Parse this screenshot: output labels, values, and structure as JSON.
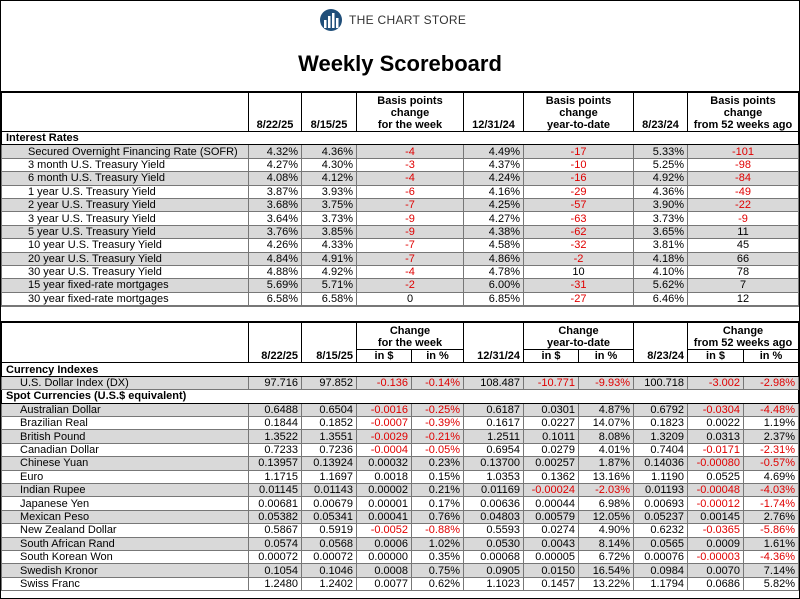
{
  "header": {
    "brand": "THE CHART STORE",
    "title": "Weekly Scoreboard"
  },
  "rates": {
    "headers": [
      "8/22/25",
      "8/15/25",
      [
        "Basis points",
        "change",
        "for the week"
      ],
      "12/31/24",
      [
        "Basis points",
        "change",
        "year-to-date"
      ],
      "8/23/24",
      [
        "Basis points",
        "change",
        "from 52 weeks ago"
      ]
    ],
    "section": "Interest Rates",
    "rows": [
      [
        "Secured Overnight Financing Rate (SOFR)",
        "4.32%",
        "4.36%",
        "-4",
        "4.49%",
        "-17",
        "5.33%",
        "-101"
      ],
      [
        "3 month U.S. Treasury Yield",
        "4.27%",
        "4.30%",
        "-3",
        "4.37%",
        "-10",
        "5.25%",
        "-98"
      ],
      [
        "6 month U.S. Treasury Yield",
        "4.08%",
        "4.12%",
        "-4",
        "4.24%",
        "-16",
        "4.92%",
        "-84"
      ],
      [
        "1 year U.S. Treasury Yield",
        "3.87%",
        "3.93%",
        "-6",
        "4.16%",
        "-29",
        "4.36%",
        "-49"
      ],
      [
        "2 year U.S. Treasury Yield",
        "3.68%",
        "3.75%",
        "-7",
        "4.25%",
        "-57",
        "3.90%",
        "-22"
      ],
      [
        "3 year U.S. Treasury Yield",
        "3.64%",
        "3.73%",
        "-9",
        "4.27%",
        "-63",
        "3.73%",
        "-9"
      ],
      [
        "5 year U.S. Treasury Yield",
        "3.76%",
        "3.85%",
        "-9",
        "4.38%",
        "-62",
        "3.65%",
        "11"
      ],
      [
        "10 year U.S. Treasury Yield",
        "4.26%",
        "4.33%",
        "-7",
        "4.58%",
        "-32",
        "3.81%",
        "45"
      ],
      [
        "20 year U.S. Treasury Yield",
        "4.84%",
        "4.91%",
        "-7",
        "4.86%",
        "-2",
        "4.18%",
        "66"
      ],
      [
        "30 year U.S. Treasury Yield",
        "4.88%",
        "4.92%",
        "-4",
        "4.78%",
        "10",
        "4.10%",
        "78"
      ],
      [
        "15 year fixed-rate mortgages",
        "5.69%",
        "5.71%",
        "-2",
        "6.00%",
        "-31",
        "5.62%",
        "7"
      ],
      [
        "30 year fixed-rate mortgages",
        "6.58%",
        "6.58%",
        "0",
        "6.85%",
        "-27",
        "6.46%",
        "12"
      ]
    ]
  },
  "currencies": {
    "headers": [
      "8/22/25",
      "8/15/25",
      {
        "title": [
          "Change",
          "for the week"
        ],
        "sub": [
          "in $",
          "in %"
        ]
      },
      "12/31/24",
      {
        "title": [
          "Change",
          "year-to-date"
        ],
        "sub": [
          "in $",
          "in %"
        ]
      },
      "8/23/24",
      {
        "title": [
          "Change",
          "from 52 weeks ago"
        ],
        "sub": [
          "in $",
          "in %"
        ]
      }
    ],
    "sections": [
      {
        "title": "Currency Indexes",
        "rows": [
          [
            "U.S. Dollar Index (DX)",
            "97.716",
            "97.852",
            "-0.136",
            "-0.14%",
            "108.487",
            "-10.771",
            "-9.93%",
            "100.718",
            "-3.002",
            "-2.98%"
          ]
        ]
      },
      {
        "title": "Spot Currencies (U.S.$ equivalent)",
        "rows": [
          [
            "Australian Dollar",
            "0.6488",
            "0.6504",
            "-0.0016",
            "-0.25%",
            "0.6187",
            "0.0301",
            "4.87%",
            "0.6792",
            "-0.0304",
            "-4.48%"
          ],
          [
            "Brazilian Real",
            "0.1844",
            "0.1852",
            "-0.0007",
            "-0.39%",
            "0.1617",
            "0.0227",
            "14.07%",
            "0.1823",
            "0.0022",
            "1.19%"
          ],
          [
            "British Pound",
            "1.3522",
            "1.3551",
            "-0.0029",
            "-0.21%",
            "1.2511",
            "0.1011",
            "8.08%",
            "1.3209",
            "0.0313",
            "2.37%"
          ],
          [
            "Canadian Dollar",
            "0.7233",
            "0.7236",
            "-0.0004",
            "-0.05%",
            "0.6954",
            "0.0279",
            "4.01%",
            "0.7404",
            "-0.0171",
            "-2.31%"
          ],
          [
            "Chinese Yuan",
            "0.13957",
            "0.13924",
            "0.00032",
            "0.23%",
            "0.13700",
            "0.00257",
            "1.87%",
            "0.14036",
            "-0.00080",
            "-0.57%"
          ],
          [
            "Euro",
            "1.1715",
            "1.1697",
            "0.0018",
            "0.15%",
            "1.0353",
            "0.1362",
            "13.16%",
            "1.1190",
            "0.0525",
            "4.69%"
          ],
          [
            "Indian Rupee",
            "0.01145",
            "0.01143",
            "0.00002",
            "0.21%",
            "0.01169",
            "-0.00024",
            "-2.03%",
            "0.01193",
            "-0.00048",
            "-4.03%"
          ],
          [
            "Japanese Yen",
            "0.00681",
            "0.00679",
            "0.00001",
            "0.17%",
            "0.00636",
            "0.00044",
            "6.98%",
            "0.00693",
            "-0.00012",
            "-1.74%"
          ],
          [
            "Mexican Peso",
            "0.05382",
            "0.05341",
            "0.00041",
            "0.76%",
            "0.04803",
            "0.00579",
            "12.05%",
            "0.05237",
            "0.00145",
            "2.76%"
          ],
          [
            "New Zealand Dollar",
            "0.5867",
            "0.5919",
            "-0.0052",
            "-0.88%",
            "0.5593",
            "0.0274",
            "4.90%",
            "0.6232",
            "-0.0365",
            "-5.86%"
          ],
          [
            "South African Rand",
            "0.0574",
            "0.0568",
            "0.0006",
            "1.02%",
            "0.0530",
            "0.0043",
            "8.14%",
            "0.0565",
            "0.0009",
            "1.61%"
          ],
          [
            "South Korean Won",
            "0.00072",
            "0.00072",
            "0.00000",
            "0.35%",
            "0.00068",
            "0.00005",
            "6.72%",
            "0.00076",
            "-0.00003",
            "-4.36%"
          ],
          [
            "Swedish Kronor",
            "0.1054",
            "0.1046",
            "0.0008",
            "0.75%",
            "0.0905",
            "0.0150",
            "16.54%",
            "0.0984",
            "0.0070",
            "7.14%"
          ],
          [
            "Swiss Franc",
            "1.2480",
            "1.2402",
            "0.0077",
            "0.62%",
            "1.1023",
            "0.1457",
            "13.22%",
            "1.1794",
            "0.0686",
            "5.82%"
          ]
        ]
      }
    ]
  }
}
